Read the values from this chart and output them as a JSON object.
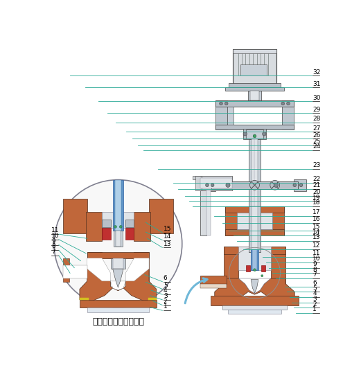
{
  "bg_color": "#ffffff",
  "line_color": "#2aaa96",
  "pump_color": "#c0673a",
  "pump_dark": "#a05030",
  "shaft_color": "#c8d0d8",
  "shaft_mid": "#a8b4be",
  "shaft_dark": "#7890a0",
  "blue_color": "#6096c8",
  "red_color": "#c03030",
  "yellow_color": "#d4c020",
  "gray_light": "#e0e4e8",
  "gray_mid": "#b8c0c8",
  "gray_dark": "#808890",
  "white": "#ffffff",
  "frame_color": "#c0c8d0",
  "motor_color": "#d8dce0",
  "title_text": "液下泵底部局部放大图",
  "label_fontsize": 6.5,
  "lw_thin": 0.5,
  "lw_med": 0.8
}
